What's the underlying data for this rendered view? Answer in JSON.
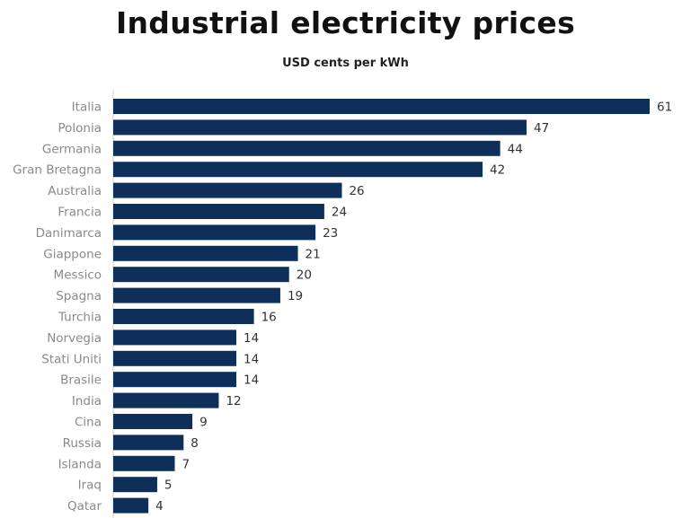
{
  "chart_data": {
    "type": "bar",
    "orientation": "horizontal",
    "title": "Industrial electricity prices",
    "subtitle": "USD cents per kWh",
    "categories": [
      "Italia",
      "Polonia",
      "Germania",
      "Gran Bretagna",
      "Australia",
      "Francia",
      "Danimarca",
      "Giappone",
      "Messico",
      "Spagna",
      "Turchia",
      "Norvegia",
      "Stati Uniti",
      "Brasile",
      "India",
      "Cina",
      "Russia",
      "Islanda",
      "Iraq",
      "Qatar"
    ],
    "values": [
      61,
      47,
      44,
      42,
      26,
      24,
      23,
      21,
      20,
      19,
      16,
      14,
      14,
      14,
      12,
      9,
      8,
      7,
      5,
      4
    ],
    "xlim": [
      0,
      62
    ],
    "grid": false,
    "bar_color": "#0d2f5a",
    "data_labels": true
  }
}
